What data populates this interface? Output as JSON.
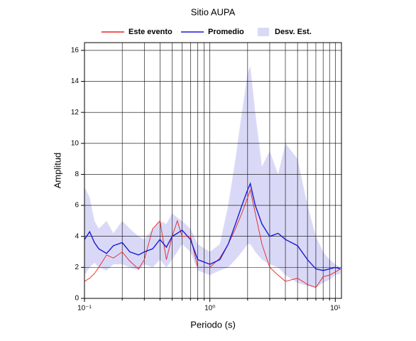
{
  "chart_data": {
    "type": "line",
    "title": "Sitio AUPA",
    "xlabel": "Periodo (s)",
    "ylabel": "Amplitud",
    "x_scale": "log",
    "grid": true,
    "xlim": [
      0.1,
      11.2
    ],
    "ylim": [
      0,
      16.5
    ],
    "xticks": [
      {
        "value": 0.1,
        "label": "10⁻¹"
      },
      {
        "value": 1,
        "label": "10⁰"
      },
      {
        "value": 10,
        "label": "10¹"
      }
    ],
    "xgrid_ticks": [
      0.2,
      0.3,
      0.4,
      0.5,
      0.6,
      0.7,
      0.8,
      0.9,
      2,
      3,
      4,
      5,
      6,
      7,
      8,
      9
    ],
    "yticks": [
      0,
      2,
      4,
      6,
      8,
      10,
      12,
      14,
      16
    ],
    "x": [
      0.1,
      0.11,
      0.12,
      0.13,
      0.15,
      0.17,
      0.2,
      0.23,
      0.27,
      0.3,
      0.35,
      0.4,
      0.45,
      0.5,
      0.55,
      0.6,
      0.7,
      0.8,
      1.0,
      1.2,
      1.4,
      1.6,
      1.8,
      2.0,
      2.1,
      2.3,
      2.6,
      3.0,
      3.5,
      4.0,
      5.0,
      6.0,
      7.0,
      8.0,
      9.0,
      10,
      11
    ],
    "series": [
      {
        "name": "Este evento",
        "color": "#e8231d",
        "values": [
          1.1,
          1.3,
          1.6,
          2.0,
          2.8,
          2.6,
          3.0,
          2.4,
          1.9,
          2.5,
          4.5,
          5.0,
          2.5,
          4.0,
          5.0,
          4.0,
          4.0,
          2.0,
          2.0,
          2.6,
          3.5,
          4.5,
          5.5,
          6.5,
          7.0,
          5.5,
          3.5,
          2.0,
          1.5,
          1.1,
          1.3,
          0.9,
          0.7,
          1.4,
          1.5,
          1.7,
          1.9
        ]
      },
      {
        "name": "Promedio",
        "color": "#1a1ad6",
        "values": [
          3.8,
          4.3,
          3.6,
          3.2,
          2.9,
          3.4,
          3.6,
          3.0,
          2.8,
          3.0,
          3.2,
          3.8,
          3.3,
          4.0,
          4.2,
          4.4,
          3.8,
          2.5,
          2.2,
          2.5,
          3.5,
          4.8,
          6.0,
          7.0,
          7.4,
          6.0,
          4.8,
          4.0,
          4.2,
          3.8,
          3.4,
          2.5,
          1.9,
          1.8,
          1.9,
          2.0,
          1.9
        ]
      },
      {
        "name": "Desv. Est.",
        "type": "band",
        "color": "#d9d9f7",
        "upper": [
          7.2,
          6.5,
          5.0,
          4.5,
          5.0,
          4.2,
          5.0,
          4.5,
          4.0,
          3.8,
          4.5,
          5.0,
          4.8,
          5.5,
          5.2,
          5.0,
          4.5,
          3.5,
          3.0,
          3.5,
          6.0,
          9.0,
          12.0,
          14.5,
          15.0,
          12.0,
          8.5,
          9.5,
          8.0,
          10.0,
          9.0,
          6.0,
          4.0,
          3.0,
          2.5,
          2.2,
          2.0
        ],
        "lower": [
          1.5,
          2.0,
          2.3,
          2.0,
          1.8,
          2.2,
          2.2,
          2.0,
          1.8,
          2.2,
          2.0,
          2.5,
          2.0,
          2.5,
          3.0,
          3.5,
          3.0,
          1.8,
          1.5,
          1.8,
          2.0,
          2.5,
          3.0,
          3.5,
          3.5,
          3.0,
          2.5,
          2.2,
          2.0,
          1.5,
          1.0,
          0.8,
          0.7,
          1.0,
          1.2,
          1.5,
          1.6
        ]
      }
    ]
  }
}
